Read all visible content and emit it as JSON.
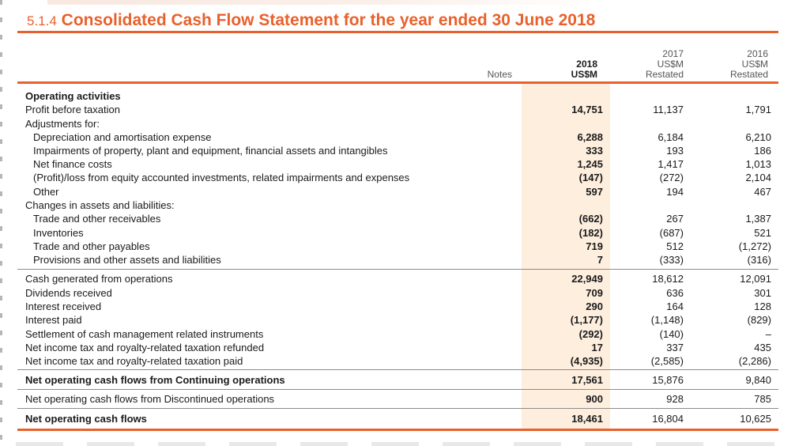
{
  "title": {
    "number": "5.1.4",
    "text": "Consolidated Cash Flow Statement for the year ended 30 June 2018"
  },
  "headers": {
    "notes": "Notes",
    "col1": {
      "year": "2018",
      "unit": "US$M",
      "note": ""
    },
    "col2": {
      "year": "2017",
      "unit": "US$M",
      "note": "Restated"
    },
    "col3": {
      "year": "2016",
      "unit": "US$M",
      "note": "Restated"
    }
  },
  "rows": [
    {
      "label": "Operating activities",
      "bold": true,
      "indent": false,
      "values": [
        "",
        "",
        ""
      ]
    },
    {
      "label": "Profit before taxation",
      "bold": false,
      "indent": false,
      "values": [
        "14,751",
        "11,137",
        "1,791"
      ]
    },
    {
      "label": "Adjustments for:",
      "bold": false,
      "indent": false,
      "values": [
        "",
        "",
        ""
      ]
    },
    {
      "label": "Depreciation and amortisation expense",
      "bold": false,
      "indent": true,
      "values": [
        "6,288",
        "6,184",
        "6,210"
      ]
    },
    {
      "label": "Impairments of property, plant and equipment, financial assets and intangibles",
      "bold": false,
      "indent": true,
      "values": [
        "333",
        "193",
        "186"
      ]
    },
    {
      "label": "Net finance costs",
      "bold": false,
      "indent": true,
      "values": [
        "1,245",
        "1,417",
        "1,013"
      ]
    },
    {
      "label": "(Profit)/loss from equity accounted investments, related impairments and expenses",
      "bold": false,
      "indent": true,
      "values": [
        "(147)",
        "(272)",
        "2,104"
      ]
    },
    {
      "label": "Other",
      "bold": false,
      "indent": true,
      "values": [
        "597",
        "194",
        "467"
      ]
    },
    {
      "label": "Changes in assets and liabilities:",
      "bold": false,
      "indent": false,
      "values": [
        "",
        "",
        ""
      ]
    },
    {
      "label": "Trade and other receivables",
      "bold": false,
      "indent": true,
      "values": [
        "(662)",
        "267",
        "1,387"
      ]
    },
    {
      "label": "Inventories",
      "bold": false,
      "indent": true,
      "values": [
        "(182)",
        "(687)",
        "521"
      ]
    },
    {
      "label": "Trade and other payables",
      "bold": false,
      "indent": true,
      "values": [
        "719",
        "512",
        "(1,272)"
      ]
    },
    {
      "label": "Provisions and other assets and liabilities",
      "bold": false,
      "indent": true,
      "values": [
        "7",
        "(333)",
        "(316)"
      ]
    },
    {
      "label": "Cash generated from operations",
      "bold": false,
      "indent": false,
      "values": [
        "22,949",
        "18,612",
        "12,091"
      ]
    },
    {
      "label": "Dividends received",
      "bold": false,
      "indent": false,
      "values": [
        "709",
        "636",
        "301"
      ]
    },
    {
      "label": "Interest received",
      "bold": false,
      "indent": false,
      "values": [
        "290",
        "164",
        "128"
      ]
    },
    {
      "label": "Interest paid",
      "bold": false,
      "indent": false,
      "values": [
        "(1,177)",
        "(1,148)",
        "(829)"
      ]
    },
    {
      "label": "Settlement of cash management related instruments",
      "bold": false,
      "indent": false,
      "values": [
        "(292)",
        "(140)",
        "–"
      ]
    },
    {
      "label": "Net income tax and royalty-related taxation refunded",
      "bold": false,
      "indent": false,
      "values": [
        "17",
        "337",
        "435"
      ]
    },
    {
      "label": "Net income tax and royalty-related taxation paid",
      "bold": false,
      "indent": false,
      "values": [
        "(4,935)",
        "(2,585)",
        "(2,286)"
      ]
    },
    {
      "label": "Net operating cash flows from Continuing operations",
      "bold": true,
      "indent": false,
      "values": [
        "17,561",
        "15,876",
        "9,840"
      ]
    },
    {
      "label": "Net operating cash flows from Discontinued operations",
      "bold": false,
      "indent": false,
      "values": [
        "900",
        "928",
        "785"
      ]
    },
    {
      "label": "Net operating cash flows",
      "bold": true,
      "indent": false,
      "values": [
        "18,461",
        "16,804",
        "10,625"
      ]
    }
  ]
}
